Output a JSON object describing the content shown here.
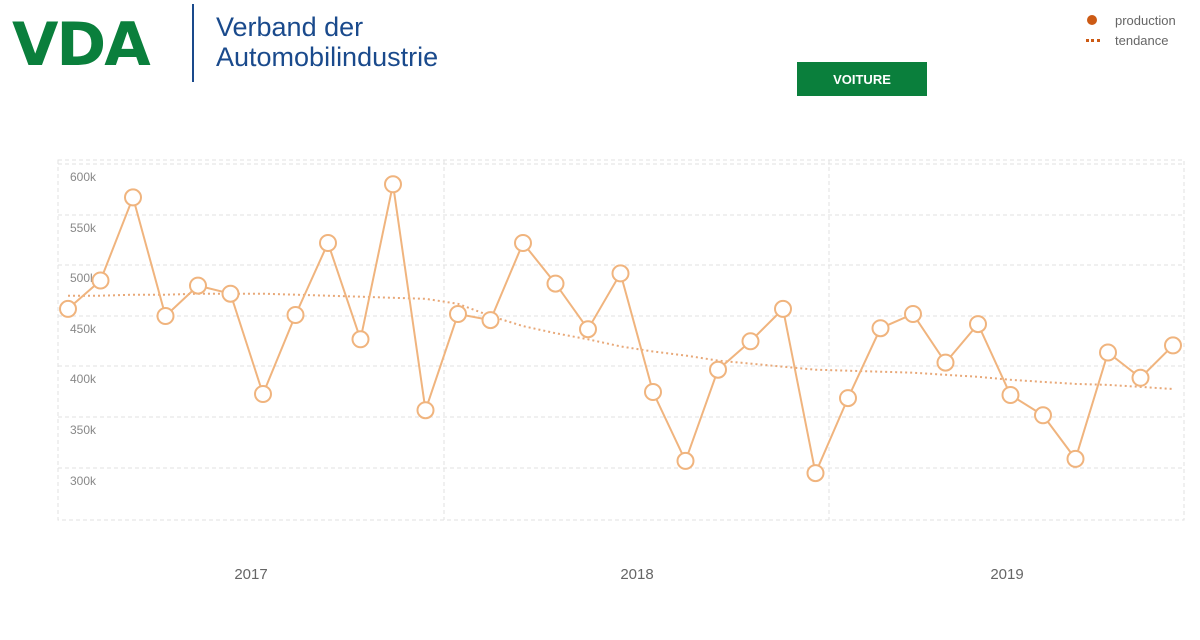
{
  "header": {
    "logo": "VDA",
    "org_name_line1": "Verband der",
    "org_name_line2": "Automobilindustrie",
    "tab_label": "VOITURE"
  },
  "legend": {
    "production": "production",
    "trend": "tendance"
  },
  "colors": {
    "brand_green": "#0a7f3c",
    "brand_blue": "#1a4a8c",
    "series": "#f0b47e",
    "legend_marker": "#cc5a14"
  },
  "chart_data": {
    "type": "line",
    "title": "",
    "xlabel": "",
    "ylabel": "",
    "x_tick_labels": [
      "2017",
      "2018",
      "2019"
    ],
    "y_tick_labels": [
      "600k",
      "550k",
      "500k",
      "450k",
      "400k",
      "350k",
      "300k"
    ],
    "y_ticks": [
      600000,
      550000,
      500000,
      450000,
      400000,
      350000,
      300000
    ],
    "ylim": [
      250000,
      610000
    ],
    "grid": true,
    "legend_position": "top-right",
    "series": [
      {
        "name": "production",
        "style": "solid-with-markers",
        "values": [
          457000,
          485000,
          567000,
          450000,
          480000,
          472000,
          373000,
          451000,
          522000,
          427000,
          580000,
          357000,
          452000,
          446000,
          522000,
          482000,
          437000,
          492000,
          375000,
          307000,
          397000,
          425000,
          457000,
          295000,
          369000,
          438000,
          452000,
          404000,
          442000,
          372000,
          352000,
          309000,
          414000,
          389000,
          421000
        ]
      },
      {
        "name": "tendance",
        "style": "dotted",
        "values": [
          470000,
          470000,
          471000,
          471000,
          472000,
          472000,
          472000,
          471000,
          470000,
          469000,
          468000,
          467000,
          462000,
          450000,
          440000,
          433000,
          427000,
          420000,
          415000,
          411000,
          406000,
          403000,
          400000,
          397000,
          396000,
          395000,
          394000,
          392000,
          390000,
          387000,
          385000,
          383000,
          382000,
          380000,
          378000
        ]
      }
    ]
  }
}
